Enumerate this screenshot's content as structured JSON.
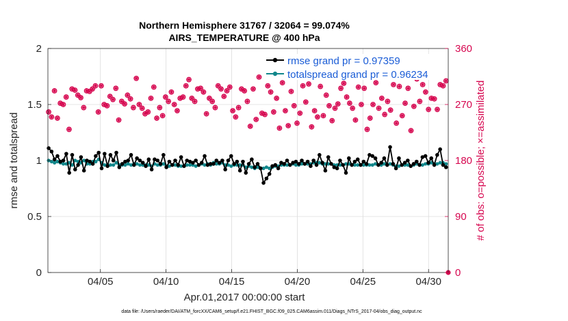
{
  "chart_data": {
    "type": "line",
    "title_line1": "Northern Hemisphere 31767 / 32064 = 99.074%",
    "title_line2": "AIRS_TEMPERATURE @ 400 hPa",
    "xlabel": "Apr.01,2017 00:00:00 start",
    "ylabel": "rmse and totalspread",
    "ylabel_right": "# of obs: o=possible; ×=assimilated",
    "xlim": [
      1,
      31.5
    ],
    "ylim": [
      0,
      2
    ],
    "ylim_right": [
      0,
      360
    ],
    "x_ticks": [
      5,
      10,
      15,
      20,
      25,
      30
    ],
    "x_tick_labels": [
      "04/05",
      "04/10",
      "04/15",
      "04/20",
      "04/25",
      "04/30"
    ],
    "y_ticks": [
      0,
      0.5,
      1,
      1.5,
      2
    ],
    "y_tick_labels": [
      "0",
      "0.5",
      "1",
      "1.5",
      "2"
    ],
    "y_right_ticks": [
      0,
      90,
      180,
      270,
      360
    ],
    "y_right_tick_labels": [
      "0",
      "90",
      "180",
      "270",
      "360"
    ],
    "series": [
      {
        "name": "rmse grand pr = 0.97359",
        "color": "#000000",
        "values": [
          1.11,
          1.08,
          1.01,
          1.04,
          0.99,
          1.0,
          1.06,
          0.89,
          1.05,
          0.92,
          0.96,
          1.03,
          0.91,
          1.0,
          0.99,
          0.97,
          1.04,
          1.07,
          0.93,
          1.06,
          0.95,
          1.05,
          1.0,
          1.07,
          0.94,
          0.97,
          0.99,
          1.0,
          1.05,
          0.96,
          1.02,
          1.0,
          0.98,
          0.95,
          1.01,
          0.92,
          1.01,
          1.0,
          0.97,
          1.05,
          0.94,
          0.99,
          0.96,
          1.0,
          0.96,
          1.03,
          0.95,
          1.0,
          0.99,
          0.98,
          1.0,
          0.96,
          0.98,
          1.04,
          0.96,
          0.97,
          0.97,
          1.0,
          0.98,
          1.0,
          0.92,
          1.0,
          1.04,
          0.97,
          0.99,
          0.91,
          0.99,
          0.89,
          0.97,
          1.01,
          0.94,
          0.97,
          0.93,
          0.8,
          0.84,
          0.88,
          0.95,
          0.96,
          0.93,
          0.98,
          0.97,
          1.0,
          0.96,
          0.98,
          0.99,
          0.97,
          1.0,
          0.97,
          0.99,
          0.95,
          1.0,
          0.96,
          1.05,
          0.98,
          0.91,
          1.03,
          0.97,
          0.94,
          0.93,
          1.0,
          0.96,
          0.89,
          1.02,
          0.96,
          0.99,
          1.01,
          0.96,
          0.99,
          0.97,
          1.05,
          1.04,
          1.02,
          0.96,
          0.98,
          1.02,
          0.96,
          1.12,
          0.97,
          0.93,
          1.02,
          0.96,
          0.98,
          1.0,
          0.95,
          0.97,
          0.99,
          0.96,
          1.03,
          1.04,
          0.98,
          1.02,
          0.96,
          1.05,
          1.1,
          0.96,
          0.94
        ]
      },
      {
        "name": "totalspread grand pr = 0.96234",
        "color": "#10868a",
        "values": [
          1.0,
          0.99,
          0.98,
          0.99,
          0.98,
          0.97,
          0.97,
          0.98,
          0.96,
          1.0,
          0.99,
          0.98,
          1.0,
          0.97,
          0.97,
          0.99,
          0.99,
          1.01,
          0.98,
          0.96,
          0.96,
          0.96,
          0.96,
          0.98,
          0.96,
          0.96,
          0.96,
          0.97,
          0.96,
          0.97,
          0.97,
          0.96,
          0.96,
          0.96,
          0.96,
          0.95,
          0.97,
          0.96,
          0.96,
          0.97,
          0.95,
          0.95,
          0.96,
          0.96,
          0.95,
          0.95,
          0.95,
          0.96,
          0.96,
          0.96,
          0.95,
          0.96,
          0.97,
          0.96,
          0.97,
          0.96,
          0.98,
          0.97,
          0.97,
          0.98,
          0.96,
          0.96,
          0.95,
          0.96,
          0.96,
          0.96,
          0.96,
          0.94,
          0.95,
          0.94,
          0.93,
          0.94,
          0.93,
          0.93,
          0.94,
          0.93,
          0.94,
          0.95,
          0.95,
          0.96,
          0.96,
          0.96,
          0.96,
          0.97,
          0.96,
          0.96,
          0.97,
          0.97,
          0.97,
          0.97,
          0.98,
          0.98,
          0.98,
          0.97,
          0.97,
          0.97,
          0.97,
          0.96,
          0.96,
          0.96,
          0.96,
          0.97,
          0.97,
          0.96,
          0.96,
          0.96,
          0.96,
          0.96,
          0.96,
          0.96,
          0.96,
          0.97,
          0.96,
          0.96,
          0.97,
          0.96,
          0.97,
          0.96,
          0.95,
          0.95,
          0.96,
          0.96,
          0.96,
          0.95,
          0.96,
          0.97,
          0.96,
          0.96,
          0.97,
          0.97,
          0.98,
          0.97,
          0.97,
          0.98,
          0.98,
          0.97
        ]
      }
    ],
    "obs_series": {
      "possible_name": "o=possible",
      "assimilated_name": "×=assimilated",
      "color": "#d6064f",
      "possible": [
        258,
        250,
        292,
        248,
        272,
        270,
        282,
        230,
        295,
        293,
        285,
        281,
        265,
        292,
        291,
        295,
        300,
        258,
        300,
        270,
        268,
        283,
        278,
        296,
        245,
        275,
        271,
        285,
        279,
        265,
        312,
        270,
        264,
        255,
        258,
        280,
        298,
        248,
        265,
        252,
        282,
        275,
        290,
        270,
        260,
        280,
        282,
        300,
        310,
        280,
        275,
        295,
        296,
        290,
        255,
        280,
        275,
        265,
        300,
        295,
        283,
        292,
        298,
        260,
        250,
        265,
        295,
        292,
        275,
        235,
        295,
        246,
        314,
        256,
        254,
        300,
        290,
        258,
        280,
        232,
        305,
        260,
        236,
        291,
        268,
        240,
        256,
        300,
        274,
        303,
        234,
        260,
        250,
        299,
        252,
        285,
        268,
        244,
        264,
        271,
        296,
        304,
        282,
        272,
        264,
        245,
        298,
        270,
        296,
        230,
        248,
        270,
        305,
        264,
        280,
        254,
        275,
        261,
        302,
        240,
        299,
        252,
        272,
        296,
        228,
        267,
        311,
        275,
        302,
        290,
        262,
        280,
        279,
        262,
        302,
        300,
        308
      ]
    },
    "legend_position": "top-right",
    "footer": "data file: /Users/raeder/DAI/ATM_forcXX/CAM6_setup/f.e21.FHIST_BGC.f09_025.CAM6assim.011/Diags_NTrS_2017-04/obs_diag_output.nc"
  }
}
